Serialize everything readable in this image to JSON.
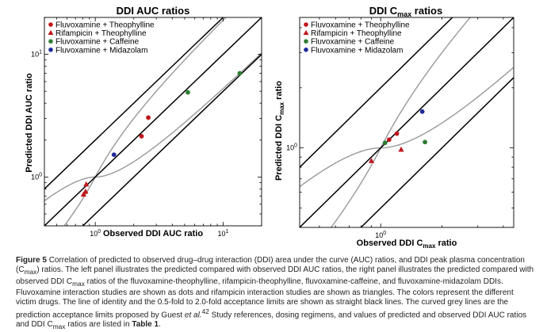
{
  "caption": {
    "label": "Figure 5",
    "p1": "Correlation of predicted to observed drug–drug interaction (DDI) area under the curve (AUC) ratios, and DDI peak plasma concentration (C",
    "sub1": "max",
    "p2": ") ratios. The left panel illustrates the predicted compared with observed DDI AUC ratios, the right panel illustrates the predicted compared with observed DDI C",
    "sub2": "max",
    "p3": " ratios of the fluvoxamine-theophylline, rifampicin-theophylline, fluvoxamine-caffeine, and fluvoxamine-midazolam DDIs. Fluvoxamine interaction studies are shown as dots and rifampicin interaction studies are shown as triangles. The colors represent the different victim drugs. The line of identity and the 0.5-fold to 2.0-fold acceptance limits are shown as straight black lines. The curved grey lines are the prediction acceptance limits proposed by Guest ",
    "etal": "et al.",
    "ref": "42",
    "p4": " Study references, dosing regimens, and values of predicted and observed DDI AUC ratios and DDI C",
    "sub3": "max",
    "p5": " ratios are listed in ",
    "table": "Table 1",
    "p6": "."
  },
  "colors": {
    "theophylline": "#c0161c",
    "caffeine": "#2e7d32",
    "midazolam": "#1f2a9c",
    "guest": "#999999",
    "identity": "#000000"
  },
  "chart_data": [
    {
      "type": "scatter",
      "title": "DDI AUC ratios",
      "xlabel": "Observed DDI AUC ratio",
      "ylabel": "Predicted DDI AUC ratio",
      "scale": "log",
      "xlim": [
        0.4,
        20
      ],
      "ylim": [
        0.4,
        20
      ],
      "ticks": [
        {
          "value": 1,
          "base": "10",
          "exp": "0"
        },
        {
          "value": 10,
          "base": "10",
          "exp": "1"
        }
      ],
      "legend_position": "top-left",
      "legend": [
        {
          "label": "Fluvoxamine + Theophylline",
          "marker": "circle",
          "color": "#c0161c"
        },
        {
          "label": "Rifampicin + Theophylline",
          "marker": "triangle",
          "color": "#c0161c"
        },
        {
          "label": "Fluvoxamine + Caffeine",
          "marker": "circle",
          "color": "#2e7d32"
        },
        {
          "label": "Fluvoxamine + Midazolam",
          "marker": "circle",
          "color": "#1f2a9c"
        }
      ],
      "series": [
        {
          "name": "Fluvoxamine + Theophylline",
          "marker": "circle",
          "color": "#c0161c",
          "points": [
            [
              2.3,
              2.15
            ],
            [
              2.6,
              3.05
            ]
          ]
        },
        {
          "name": "Rifampicin + Theophylline",
          "marker": "triangle",
          "color": "#c0161c",
          "points": [
            [
              0.81,
              0.72
            ],
            [
              0.84,
              0.76
            ],
            [
              0.85,
              0.87
            ]
          ]
        },
        {
          "name": "Fluvoxamine + Caffeine",
          "marker": "circle",
          "color": "#2e7d32",
          "points": [
            [
              5.3,
              4.9
            ],
            [
              13.5,
              7.0
            ]
          ]
        },
        {
          "name": "Fluvoxamine + Midazolam",
          "marker": "circle",
          "color": "#1f2a9c",
          "points": [
            [
              1.4,
              1.52
            ]
          ]
        }
      ]
    },
    {
      "type": "scatter",
      "title_base": "DDI C",
      "title_sub": "max",
      "title_end": " ratios",
      "xlabel_base": "Observed DDI C",
      "xlabel_sub": "max",
      "xlabel_end": " ratio",
      "ylabel_base": "Predicted DDI C",
      "ylabel_sub": "max",
      "ylabel_end": " ratio",
      "scale": "log",
      "xlim": [
        0.4,
        4.5
      ],
      "ylim": [
        0.4,
        4.5
      ],
      "ticks": [
        {
          "value": 1,
          "base": "10",
          "exp": "0"
        }
      ],
      "legend_position": "top-left",
      "legend": [
        {
          "label": "Fluvoxamine + Theophylline",
          "marker": "circle",
          "color": "#c0161c"
        },
        {
          "label": "Rifampicin + Theophylline",
          "marker": "triangle",
          "color": "#c0161c"
        },
        {
          "label": "Fluvoxamine + Caffeine",
          "marker": "circle",
          "color": "#2e7d32"
        },
        {
          "label": "Fluvoxamine + Midazolam",
          "marker": "circle",
          "color": "#1f2a9c"
        }
      ],
      "series": [
        {
          "name": "Fluvoxamine + Theophylline",
          "marker": "circle",
          "color": "#c0161c",
          "points": [
            [
              1.1,
              1.1
            ],
            [
              1.2,
              1.18
            ]
          ]
        },
        {
          "name": "Rifampicin + Theophylline",
          "marker": "triangle",
          "color": "#c0161c",
          "points": [
            [
              0.9,
              0.86
            ],
            [
              1.26,
              0.98
            ]
          ]
        },
        {
          "name": "Fluvoxamine + Caffeine",
          "marker": "circle",
          "color": "#2e7d32",
          "points": [
            [
              1.05,
              1.06
            ],
            [
              1.65,
              1.07
            ]
          ]
        },
        {
          "name": "Fluvoxamine + Midazolam",
          "marker": "circle",
          "color": "#1f2a9c",
          "points": [
            [
              1.6,
              1.52
            ]
          ]
        }
      ]
    }
  ]
}
